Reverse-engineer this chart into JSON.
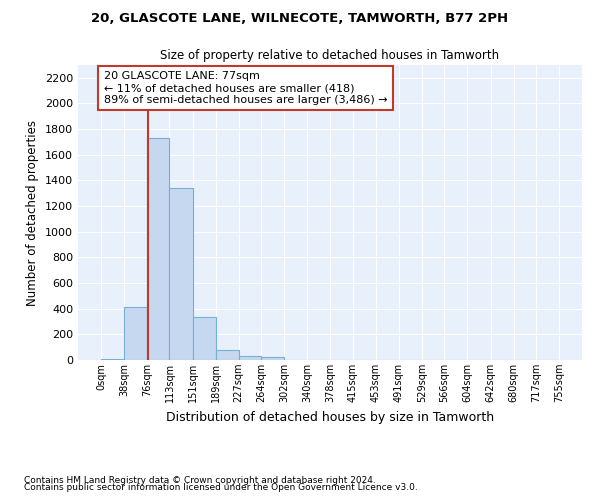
{
  "title1": "20, GLASCOTE LANE, WILNECOTE, TAMWORTH, B77 2PH",
  "title2": "Size of property relative to detached houses in Tamworth",
  "xlabel": "Distribution of detached houses by size in Tamworth",
  "ylabel": "Number of detached properties",
  "footnote1": "Contains HM Land Registry data © Crown copyright and database right 2024.",
  "footnote2": "Contains public sector information licensed under the Open Government Licence v3.0.",
  "annotation_line1": "20 GLASCOTE LANE: 77sqm",
  "annotation_line2": "← 11% of detached houses are smaller (418)",
  "annotation_line3": "89% of semi-detached houses are larger (3,486) →",
  "property_size": 77,
  "bin_edges": [
    0,
    38,
    76,
    113,
    151,
    189,
    227,
    264,
    302,
    340,
    378,
    415,
    453,
    491,
    529,
    566,
    604,
    642,
    680,
    717,
    755
  ],
  "bin_counts": [
    10,
    410,
    1730,
    1340,
    335,
    75,
    35,
    20,
    0,
    0,
    0,
    0,
    0,
    0,
    0,
    0,
    0,
    0,
    0,
    0
  ],
  "bar_color": "#c5d8f0",
  "bar_edge_color": "#7aafd4",
  "line_color": "#c0392b",
  "background_color": "#e8f0fb",
  "ylim": [
    0,
    2300
  ],
  "yticks": [
    0,
    200,
    400,
    600,
    800,
    1000,
    1200,
    1400,
    1600,
    1800,
    2000,
    2200
  ],
  "tick_labels": [
    "0sqm",
    "38sqm",
    "76sqm",
    "113sqm",
    "151sqm",
    "189sqm",
    "227sqm",
    "264sqm",
    "302sqm",
    "340sqm",
    "378sqm",
    "415sqm",
    "453sqm",
    "491sqm",
    "529sqm",
    "566sqm",
    "604sqm",
    "642sqm",
    "680sqm",
    "717sqm",
    "755sqm"
  ],
  "annotation_box_color": "#ffffff",
  "annotation_box_edge": "#c0392b"
}
